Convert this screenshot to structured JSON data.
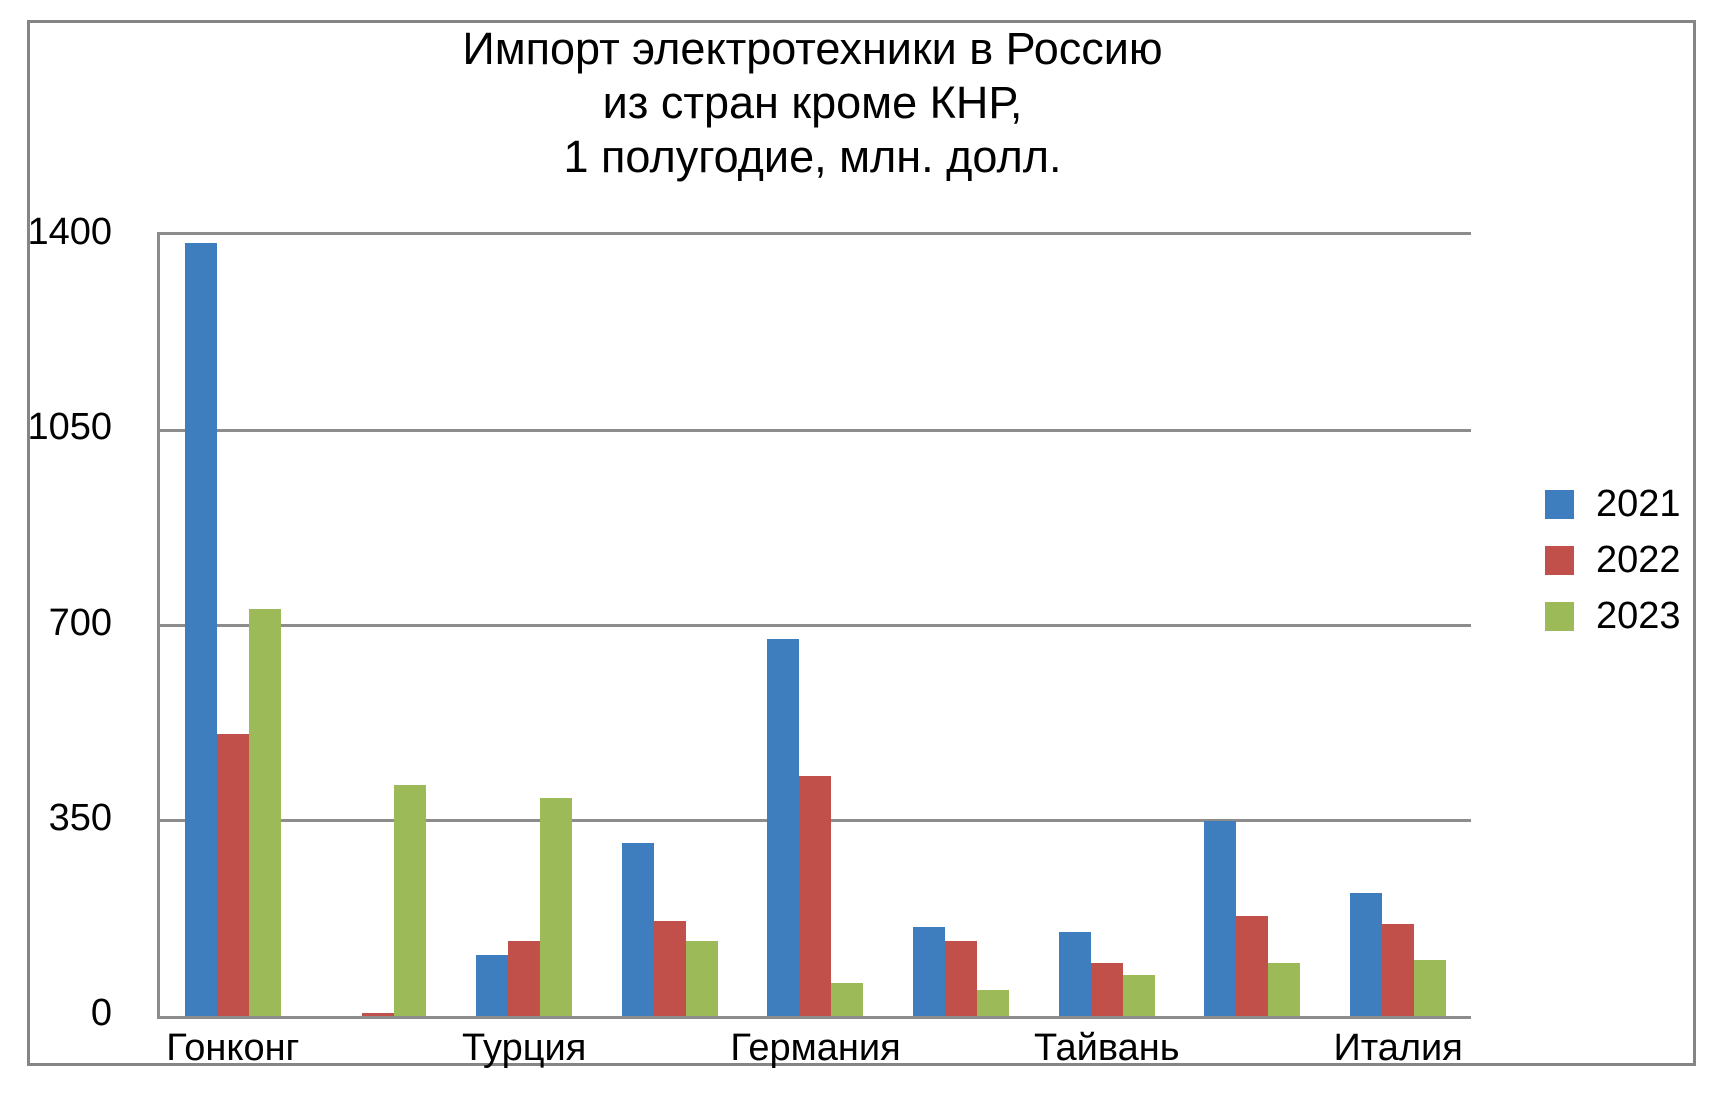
{
  "title_lines": [
    "Импорт электротехники в Россию",
    "из стран кроме КНР,",
    "1 полугодие, млн. долл."
  ],
  "chart_data": {
    "type": "bar",
    "title": "Импорт электротехники в Россию из стран кроме КНР, 1 полугодие, млн. долл.",
    "categories": [
      "Гонконг",
      "",
      "Турция",
      "",
      "Германия",
      "",
      "Тайвань",
      "",
      "Италия"
    ],
    "series": [
      {
        "name": "2021",
        "color": "#3E7EBE",
        "values": [
          1385,
          0,
          110,
          310,
          675,
          160,
          150,
          350,
          220
        ]
      },
      {
        "name": "2022",
        "color": "#C1504B",
        "values": [
          505,
          5,
          135,
          170,
          430,
          135,
          95,
          180,
          165
        ]
      },
      {
        "name": "2023",
        "color": "#9DBA59",
        "values": [
          730,
          415,
          390,
          135,
          60,
          47,
          73,
          95,
          100
        ]
      }
    ],
    "xlabel": "",
    "ylabel": "",
    "ylim": [
      0,
      1400
    ],
    "yticks": [
      0,
      350,
      700,
      1050,
      1400
    ],
    "grid": true,
    "legend_position": "right",
    "colors": {
      "gridline": "#8C8C8C",
      "frame_border": "#858585",
      "background": "#FFFFFF"
    }
  }
}
